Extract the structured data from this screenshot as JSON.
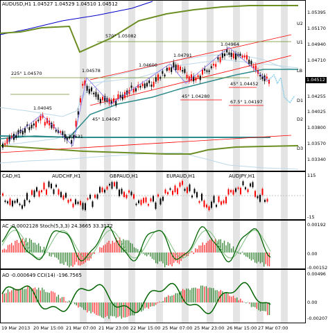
{
  "main_chart": {
    "title": "AUDUSD,H1 1.04527 1.04529 1.04510 1.04512",
    "price_badge": "1.04512",
    "price_axis": [
      "1.05395",
      "1.05170",
      "1.04940",
      "1.04710",
      "1.04485",
      "1.04255",
      "1.04025",
      "1.03800",
      "1.03570",
      "1.03340"
    ],
    "level_labels": [
      "U2",
      "U1",
      "LB",
      "D1",
      "D2",
      "D3"
    ],
    "annotations": [
      "570° 1.05082",
      "225° 1.04570",
      "1.04578",
      "1.04045",
      "45° 1.04067",
      "1.03631",
      "1.04600",
      "1.04791",
      "1.04964",
      "45° 1.04280",
      "45° 1.04452",
      "67.5° 1.04197"
    ]
  },
  "mini_panel": {
    "labels": [
      "CAD,H1",
      "AUDCHF,H1",
      "GBPAUD,H1",
      "EURAUD,H1",
      "AUDJPY,H1"
    ],
    "axis": [
      "115",
      "-15"
    ]
  },
  "ac_stoch_panel": {
    "title": "AC -0.0002128  Stoch(5,3,3) 24.3665 33.3172",
    "axis": [
      "0.00192",
      "0.00",
      "-0.00152"
    ]
  },
  "ao_cci_panel": {
    "title": "AO -0.000649  CCI(14) -196.7565",
    "axis": [
      "0.00496",
      "0.00",
      "-0.00207"
    ]
  },
  "time_axis": [
    "19 Mar 2013",
    "20 Mar 15:00",
    "21 Mar 07:00",
    "21 Mar 23:00",
    "22 Mar 15:00",
    "25 Mar 07:00",
    "25 Mar 23:00",
    "26 Mar 15:00",
    "27 Mar 07:00"
  ],
  "colors": {
    "bull": "#ff0000",
    "bear": "#000000",
    "ma_navy": "#0000c8",
    "ma_olive": "#6b8e23",
    "ma_teal": "#2e8b8b",
    "channel": "#ff0000",
    "forecast": "#87ceeb",
    "stoch_main": "#006400",
    "stoch_signal": "#7fbf7f"
  }
}
